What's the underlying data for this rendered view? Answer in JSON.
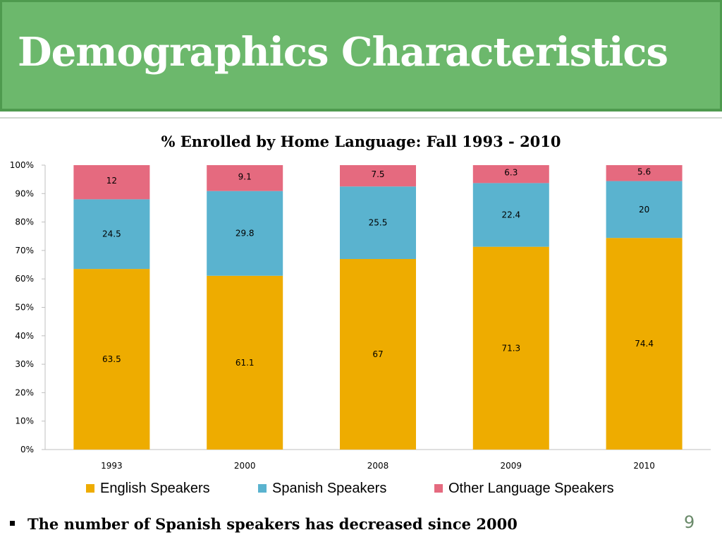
{
  "slide": {
    "title": "Demographics Characteristics",
    "bullet": "The number of Spanish speakers has decreased since 2000",
    "page_number": "9"
  },
  "colors": {
    "header_bg": "#6cb86c",
    "english": "#eeac00",
    "spanish": "#5ab3cf",
    "other": "#e56a7f"
  },
  "chart_data": {
    "type": "bar",
    "stacked": true,
    "title": "% Enrolled by Home Language: Fall 1993 - 2010",
    "categories": [
      "1993",
      "2000",
      "2008",
      "2009",
      "2010"
    ],
    "y_ticks": [
      "0%",
      "10%",
      "20%",
      "30%",
      "40%",
      "50%",
      "60%",
      "70%",
      "80%",
      "90%",
      "100%"
    ],
    "ylim": [
      0,
      100
    ],
    "legend_position": "bottom",
    "series": [
      {
        "name": "English Speakers",
        "values": [
          63.5,
          61.1,
          67,
          71.3,
          74.4
        ],
        "labels": [
          "63.5",
          "61.1",
          "67",
          "71.3",
          "74.4"
        ],
        "color": "#eeac00"
      },
      {
        "name": "Spanish Speakers",
        "values": [
          24.5,
          29.8,
          25.5,
          22.4,
          20
        ],
        "labels": [
          "24.5",
          "29.8",
          "25.5",
          "22.4",
          "20"
        ],
        "color": "#5ab3cf"
      },
      {
        "name": "Other Language Speakers",
        "values": [
          12,
          9.1,
          7.5,
          6.3,
          5.6
        ],
        "labels": [
          "12",
          "9.1",
          "7.5",
          "6.3",
          "5.6"
        ],
        "color": "#e56a7f"
      }
    ]
  }
}
